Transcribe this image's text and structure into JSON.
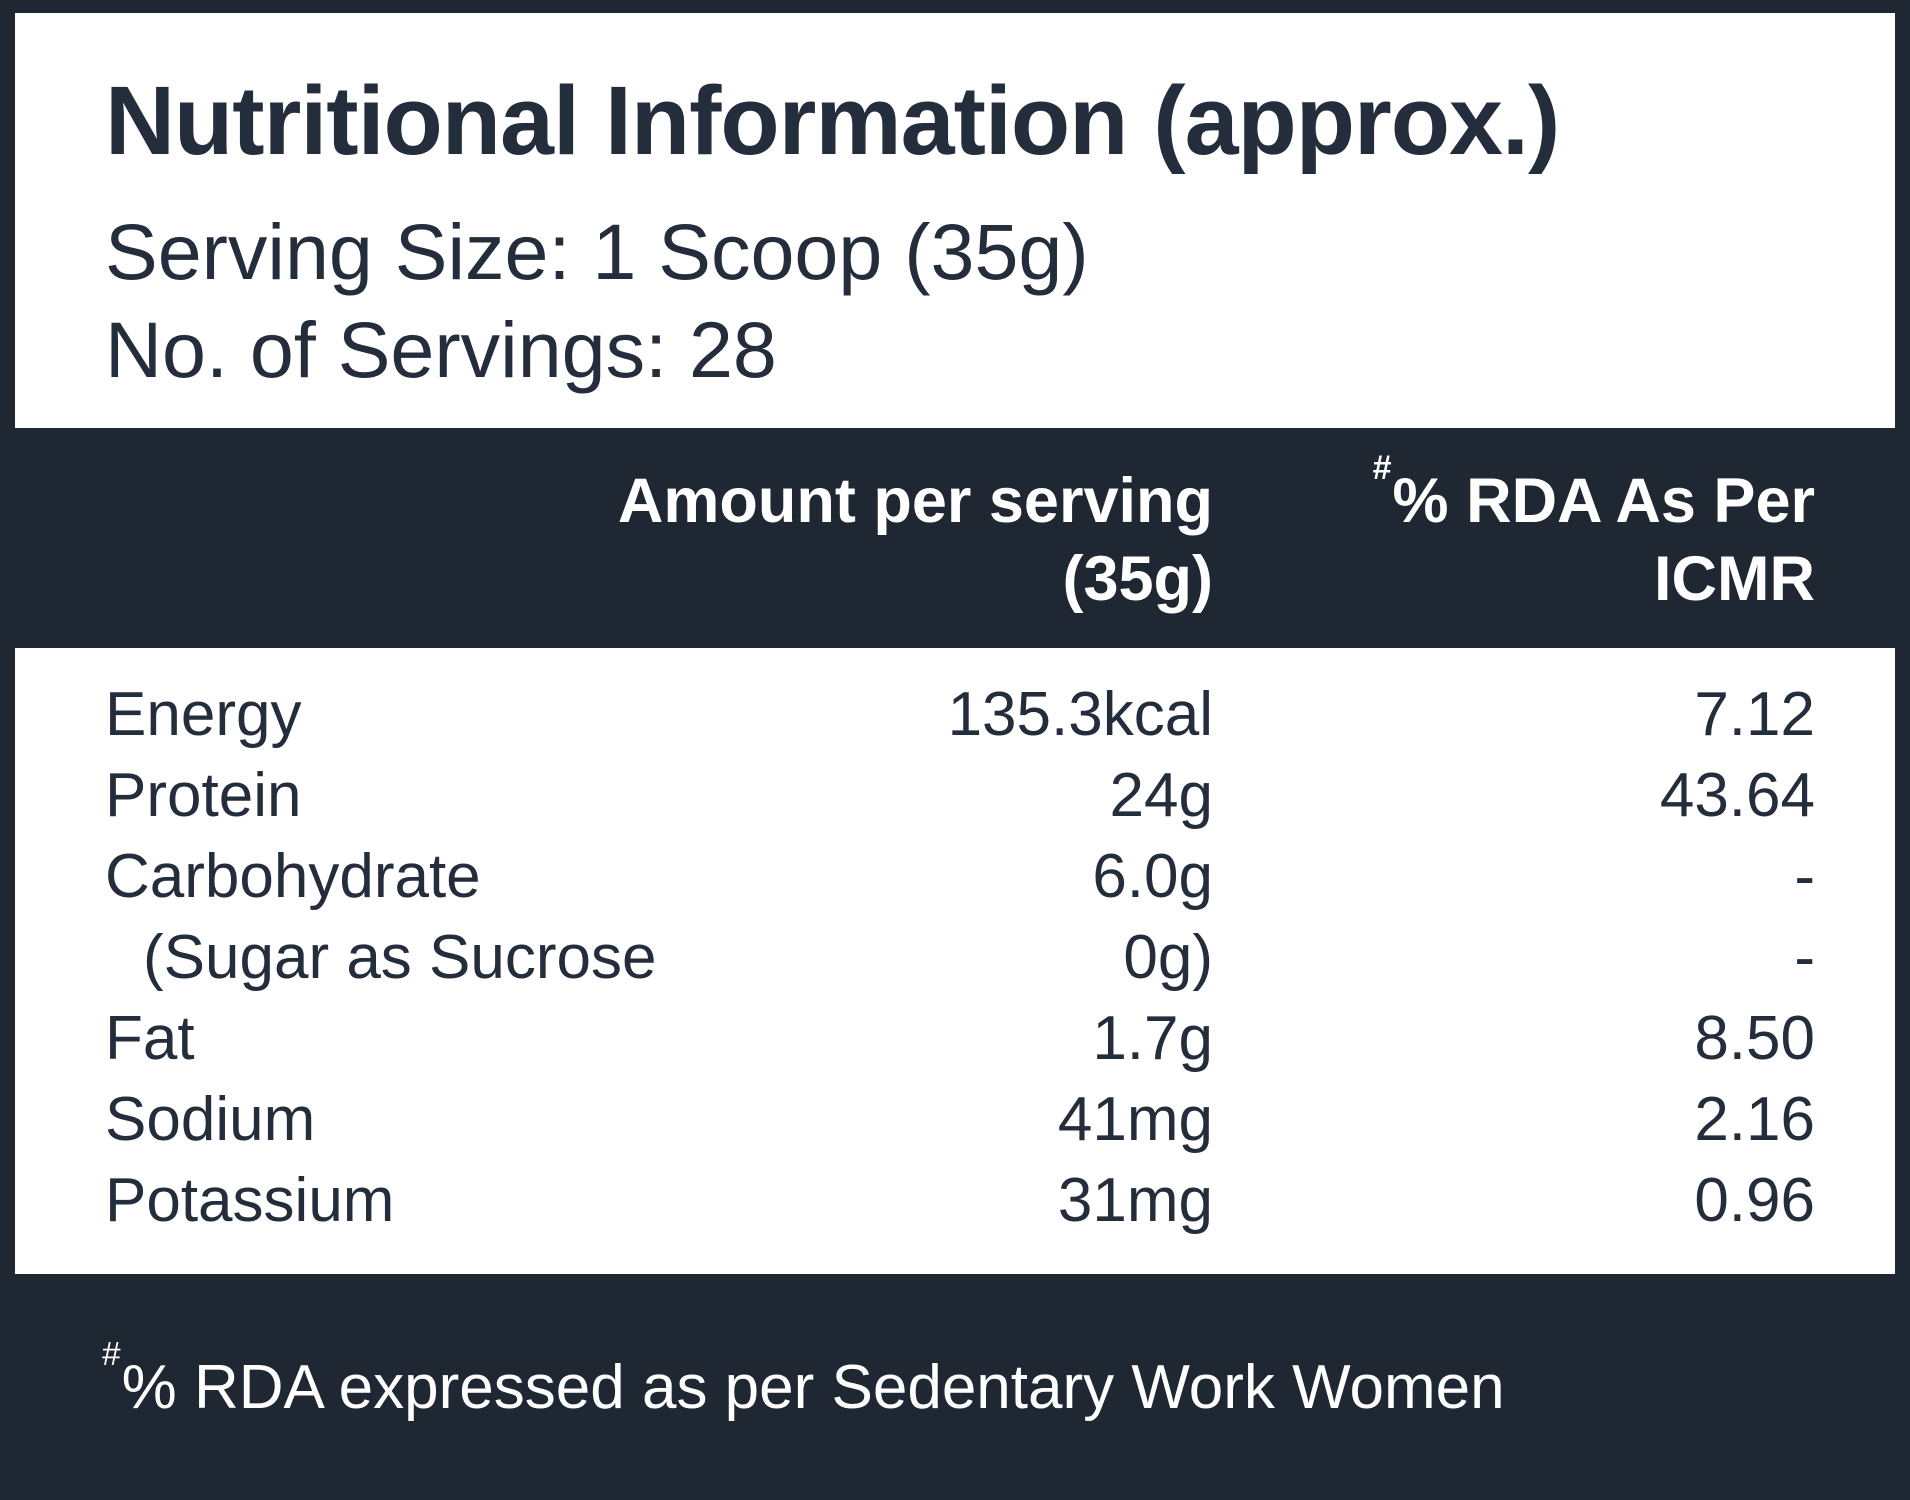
{
  "colors": {
    "background_dark": "#1f2733",
    "panel_white": "#ffffff",
    "ink": "#242d3b"
  },
  "header": {
    "title": "Nutritional Information (approx.)",
    "serving_size": "Serving Size: 1 Scoop (35g)",
    "servings": "No. of Servings: 28"
  },
  "table": {
    "columns": {
      "amount_line1": "Amount per serving",
      "amount_line2": "(35g)",
      "rda_sup": "#",
      "rda_line1": "% RDA As Per",
      "rda_line2": "ICMR"
    },
    "rows": [
      {
        "label": "Energy",
        "amount": "135.3kcal",
        "rda": "7.12",
        "indent": false
      },
      {
        "label": "Protein",
        "amount": "24g",
        "rda": "43.64",
        "indent": false
      },
      {
        "label": "Carbohydrate",
        "amount": "6.0g",
        "rda": "-",
        "indent": false
      },
      {
        "label": "(Sugar as Sucrose",
        "amount": "0g)",
        "rda": "-",
        "indent": true
      },
      {
        "label": "Fat",
        "amount": "1.7g",
        "rda": "8.50",
        "indent": false
      },
      {
        "label": "Sodium",
        "amount": "41mg",
        "rda": "2.16",
        "indent": false
      },
      {
        "label": "Potassium",
        "amount": "31mg",
        "rda": "0.96",
        "indent": false
      }
    ]
  },
  "footnote": {
    "sup": "#",
    "text": "% RDA expressed as per Sedentary Work Women"
  }
}
